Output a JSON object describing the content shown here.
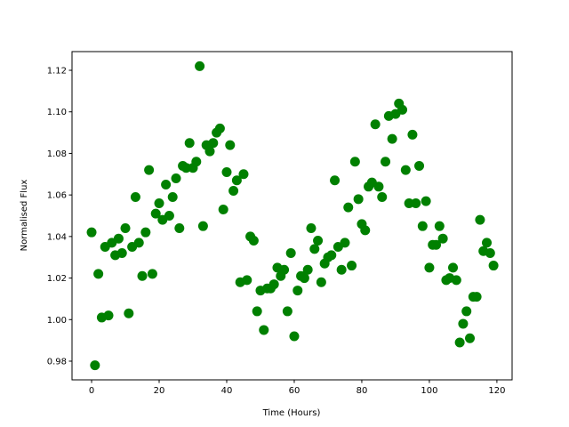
{
  "chart_data": {
    "type": "scatter",
    "title": "",
    "xlabel": "Time (Hours)",
    "ylabel": "Normalised Flux",
    "xlim": [
      -5.8,
      124.5
    ],
    "ylim": [
      0.971,
      1.129
    ],
    "xticks": [
      0,
      20,
      40,
      60,
      80,
      100,
      120
    ],
    "xtick_labels": [
      "0",
      "20",
      "40",
      "60",
      "80",
      "100",
      "120"
    ],
    "yticks": [
      0.98,
      1.0,
      1.02,
      1.04,
      1.06,
      1.08,
      1.1,
      1.12
    ],
    "ytick_labels": [
      "0.98",
      "1.00",
      "1.02",
      "1.04",
      "1.06",
      "1.08",
      "1.10",
      "1.12"
    ],
    "grid": false,
    "marker_color": "#008000",
    "series": [
      {
        "x": [
          0,
          1,
          2,
          3,
          4,
          5,
          6,
          7,
          8,
          9,
          10,
          11,
          12,
          13,
          14,
          15,
          16,
          17,
          18,
          19,
          20,
          21,
          22,
          23,
          24,
          25,
          26,
          27,
          28,
          29,
          30,
          31,
          32,
          33,
          34,
          35,
          36,
          37,
          38,
          39,
          40,
          41,
          42,
          43,
          44,
          45,
          46,
          47,
          48,
          49,
          50,
          51,
          52,
          53,
          54,
          55,
          56,
          57,
          58,
          59,
          60,
          61,
          62,
          63,
          64,
          65,
          66,
          67,
          68,
          69,
          70,
          71,
          72,
          73,
          74,
          75,
          76,
          77,
          78,
          79,
          80,
          81,
          82,
          83,
          84,
          85,
          86,
          87,
          88,
          89,
          90,
          91,
          92,
          93,
          94,
          95,
          96,
          97,
          98,
          99,
          100,
          101,
          102,
          103,
          104,
          105,
          106,
          107,
          108,
          109,
          110,
          111,
          112,
          113,
          114,
          115,
          116,
          117,
          118,
          119
        ],
        "y": [
          1.042,
          0.978,
          1.022,
          1.001,
          1.035,
          1.002,
          1.037,
          1.031,
          1.039,
          1.032,
          1.044,
          1.003,
          1.035,
          1.059,
          1.037,
          1.021,
          1.042,
          1.072,
          1.022,
          1.051,
          1.056,
          1.048,
          1.065,
          1.05,
          1.059,
          1.068,
          1.044,
          1.074,
          1.073,
          1.085,
          1.073,
          1.076,
          1.122,
          1.045,
          1.084,
          1.081,
          1.085,
          1.09,
          1.092,
          1.053,
          1.071,
          1.084,
          1.062,
          1.067,
          1.018,
          1.07,
          1.019,
          1.04,
          1.038,
          1.004,
          1.014,
          0.995,
          1.015,
          1.015,
          1.017,
          1.025,
          1.021,
          1.024,
          1.004,
          1.032,
          0.992,
          1.014,
          1.021,
          1.02,
          1.024,
          1.044,
          1.034,
          1.038,
          1.018,
          1.027,
          1.03,
          1.031,
          1.067,
          1.035,
          1.024,
          1.037,
          1.054,
          1.026,
          1.076,
          1.058,
          1.046,
          1.043,
          1.064,
          1.066,
          1.094,
          1.064,
          1.059,
          1.076,
          1.098,
          1.087,
          1.099,
          1.104,
          1.101,
          1.072,
          1.056,
          1.089,
          1.056,
          1.074,
          1.045,
          1.057,
          1.025,
          1.036,
          1.036,
          1.045,
          1.039,
          1.019,
          1.02,
          1.025,
          1.019,
          0.989,
          0.998,
          1.004,
          0.991,
          1.011,
          1.011,
          1.048,
          1.033,
          1.037,
          1.032,
          1.026
        ]
      }
    ]
  }
}
